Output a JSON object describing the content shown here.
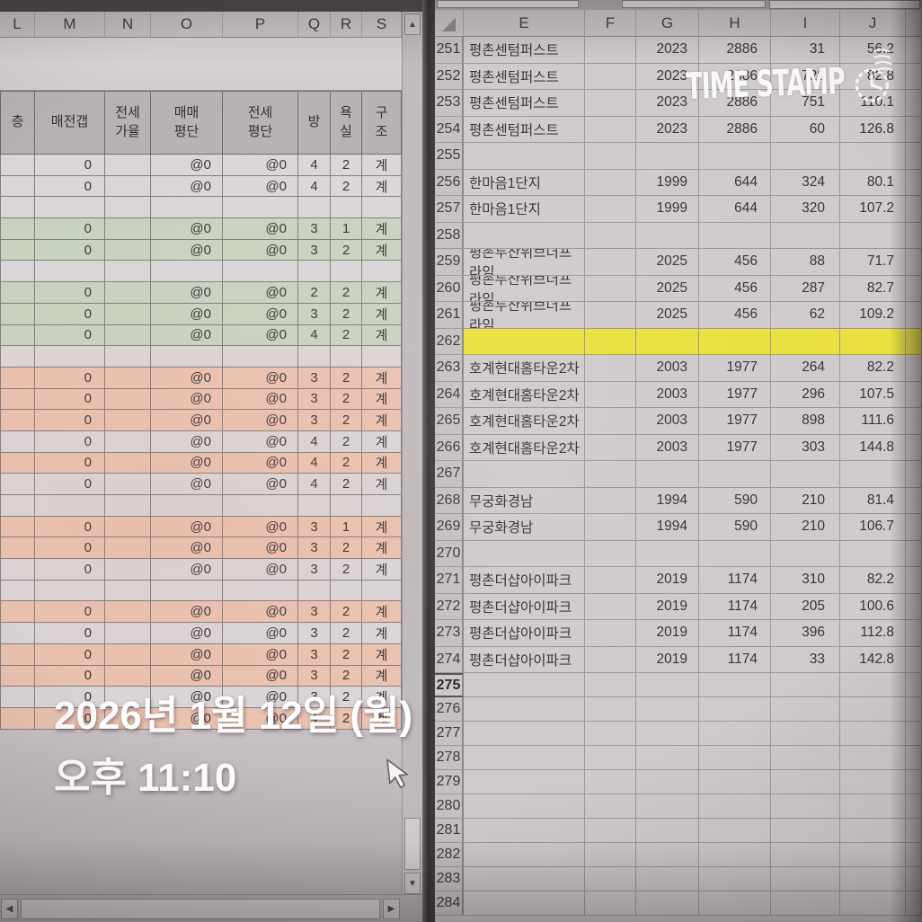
{
  "overlay": {
    "watermark_text": "TIME STAMP",
    "date_line1": "2026년 1월 12일 (월)",
    "time_line": "오후 11:10"
  },
  "icons": {
    "scroll_up": "▲",
    "scroll_down": "▼",
    "scroll_left": "◀",
    "scroll_right": "▶"
  },
  "colors": {
    "row_green": "#c8d2bf",
    "row_pink": "#eac2b0",
    "row_yellow": "#e8e13f"
  },
  "left_sheet": {
    "column_letters": [
      "L",
      "M",
      "N",
      "O",
      "P",
      "Q",
      "R",
      "S"
    ],
    "headers": [
      "층",
      "매전갭",
      "전세\n가율",
      "매매\n평단",
      "전세\n평단",
      "방",
      "욕\n실",
      "구\n조"
    ],
    "rows": [
      {
        "fill": "plain",
        "cells": [
          "",
          "0",
          "",
          "@0",
          "@0",
          "4",
          "2",
          "계"
        ]
      },
      {
        "fill": "plain",
        "cells": [
          "",
          "0",
          "",
          "@0",
          "@0",
          "4",
          "2",
          "계"
        ]
      },
      {
        "fill": "plain",
        "cells": [
          "",
          "",
          "",
          "",
          "",
          "",
          "",
          ""
        ]
      },
      {
        "fill": "green",
        "cells": [
          "",
          "0",
          "",
          "@0",
          "@0",
          "3",
          "1",
          "계"
        ]
      },
      {
        "fill": "green",
        "cells": [
          "",
          "0",
          "",
          "@0",
          "@0",
          "3",
          "2",
          "계"
        ]
      },
      {
        "fill": "plain",
        "cells": [
          "",
          "",
          "",
          "",
          "",
          "",
          "",
          ""
        ]
      },
      {
        "fill": "green",
        "cells": [
          "",
          "0",
          "",
          "@0",
          "@0",
          "2",
          "2",
          "계"
        ]
      },
      {
        "fill": "green",
        "cells": [
          "",
          "0",
          "",
          "@0",
          "@0",
          "3",
          "2",
          "계"
        ]
      },
      {
        "fill": "green",
        "cells": [
          "",
          "0",
          "",
          "@0",
          "@0",
          "4",
          "2",
          "계"
        ]
      },
      {
        "fill": "plain",
        "cells": [
          "",
          "",
          "",
          "",
          "",
          "",
          "",
          ""
        ]
      },
      {
        "fill": "pink",
        "cells": [
          "",
          "0",
          "",
          "@0",
          "@0",
          "3",
          "2",
          "계"
        ]
      },
      {
        "fill": "pink",
        "cells": [
          "",
          "0",
          "",
          "@0",
          "@0",
          "3",
          "2",
          "계"
        ]
      },
      {
        "fill": "pink",
        "cells": [
          "",
          "0",
          "",
          "@0",
          "@0",
          "3",
          "2",
          "계"
        ]
      },
      {
        "fill": "plain",
        "cells": [
          "",
          "0",
          "",
          "@0",
          "@0",
          "4",
          "2",
          "계"
        ]
      },
      {
        "fill": "pink",
        "cells": [
          "",
          "0",
          "",
          "@0",
          "@0",
          "4",
          "2",
          "계"
        ]
      },
      {
        "fill": "plain",
        "cells": [
          "",
          "0",
          "",
          "@0",
          "@0",
          "4",
          "2",
          "계"
        ]
      },
      {
        "fill": "plain",
        "cells": [
          "",
          "",
          "",
          "",
          "",
          "",
          "",
          ""
        ]
      },
      {
        "fill": "pink",
        "cells": [
          "",
          "0",
          "",
          "@0",
          "@0",
          "3",
          "1",
          "계"
        ]
      },
      {
        "fill": "pink",
        "cells": [
          "",
          "0",
          "",
          "@0",
          "@0",
          "3",
          "2",
          "계"
        ]
      },
      {
        "fill": "plain",
        "cells": [
          "",
          "0",
          "",
          "@0",
          "@0",
          "3",
          "2",
          "계"
        ]
      },
      {
        "fill": "plain",
        "cells": [
          "",
          "",
          "",
          "",
          "",
          "",
          "",
          ""
        ]
      },
      {
        "fill": "pink",
        "cells": [
          "",
          "0",
          "",
          "@0",
          "@0",
          "3",
          "2",
          "계"
        ]
      },
      {
        "fill": "plain",
        "cells": [
          "",
          "0",
          "",
          "@0",
          "@0",
          "3",
          "2",
          "계"
        ]
      },
      {
        "fill": "pink",
        "cells": [
          "",
          "0",
          "",
          "@0",
          "@0",
          "3",
          "2",
          "계"
        ]
      },
      {
        "fill": "pink",
        "cells": [
          "",
          "0",
          "",
          "@0",
          "@0",
          "3",
          "2",
          "계"
        ]
      },
      {
        "fill": "plain",
        "cells": [
          "",
          "0",
          "",
          "@0",
          "@0",
          "3",
          "2",
          "계"
        ]
      },
      {
        "fill": "pink",
        "cells": [
          "",
          "0",
          "",
          "@0",
          "@0",
          "4",
          "2",
          "계"
        ]
      }
    ]
  },
  "right_sheet": {
    "column_letters": [
      "E",
      "F",
      "G",
      "H",
      "I",
      "J"
    ],
    "rows": [
      {
        "num": "251",
        "fill": "plain",
        "cells": [
          "평촌센텀퍼스트",
          "",
          "2023",
          "2886",
          "31",
          "56.2"
        ]
      },
      {
        "num": "252",
        "fill": "plain",
        "cells": [
          "평촌센텀퍼스트",
          "",
          "2023",
          "2886",
          "728",
          "82.8"
        ]
      },
      {
        "num": "253",
        "fill": "plain",
        "cells": [
          "평촌센텀퍼스트",
          "",
          "2023",
          "2886",
          "751",
          "110.1"
        ]
      },
      {
        "num": "254",
        "fill": "plain",
        "cells": [
          "평촌센텀퍼스트",
          "",
          "2023",
          "2886",
          "60",
          "126.8"
        ]
      },
      {
        "num": "255",
        "fill": "plain",
        "cells": [
          "",
          "",
          "",
          "",
          "",
          ""
        ]
      },
      {
        "num": "256",
        "fill": "plain",
        "cells": [
          "한마음1단지",
          "",
          "1999",
          "644",
          "324",
          "80.1"
        ]
      },
      {
        "num": "257",
        "fill": "plain",
        "cells": [
          "한마음1단지",
          "",
          "1999",
          "644",
          "320",
          "107.2"
        ]
      },
      {
        "num": "258",
        "fill": "plain",
        "cells": [
          "",
          "",
          "",
          "",
          "",
          ""
        ]
      },
      {
        "num": "259",
        "fill": "plain",
        "cells": [
          "평촌두산위브더프라임",
          "",
          "2025",
          "456",
          "88",
          "71.7"
        ]
      },
      {
        "num": "260",
        "fill": "plain",
        "cells": [
          "평촌두산위브더프라임",
          "",
          "2025",
          "456",
          "287",
          "82.7"
        ]
      },
      {
        "num": "261",
        "fill": "plain",
        "cells": [
          "평촌두산위브더프라임",
          "",
          "2025",
          "456",
          "62",
          "109.2"
        ]
      },
      {
        "num": "262",
        "fill": "yellow",
        "cells": [
          "",
          "",
          "",
          "",
          "",
          ""
        ]
      },
      {
        "num": "263",
        "fill": "plain",
        "cells": [
          "호계현대홈타운2차",
          "",
          "2003",
          "1977",
          "264",
          "82.2"
        ]
      },
      {
        "num": "264",
        "fill": "plain",
        "cells": [
          "호계현대홈타운2차",
          "",
          "2003",
          "1977",
          "296",
          "107.5"
        ]
      },
      {
        "num": "265",
        "fill": "plain",
        "cells": [
          "호계현대홈타운2차",
          "",
          "2003",
          "1977",
          "898",
          "111.6"
        ]
      },
      {
        "num": "266",
        "fill": "plain",
        "cells": [
          "호계현대홈타운2차",
          "",
          "2003",
          "1977",
          "303",
          "144.8"
        ]
      },
      {
        "num": "267",
        "fill": "plain",
        "cells": [
          "",
          "",
          "",
          "",
          "",
          ""
        ]
      },
      {
        "num": "268",
        "fill": "plain",
        "cells": [
          "무궁화경남",
          "",
          "1994",
          "590",
          "210",
          "81.4"
        ]
      },
      {
        "num": "269",
        "fill": "plain",
        "cells": [
          "무궁화경남",
          "",
          "1994",
          "590",
          "210",
          "106.7"
        ]
      },
      {
        "num": "270",
        "fill": "plain",
        "cells": [
          "",
          "",
          "",
          "",
          "",
          ""
        ]
      },
      {
        "num": "271",
        "fill": "plain",
        "cells": [
          "평촌더샵아이파크",
          "",
          "2019",
          "1174",
          "310",
          "82.2"
        ]
      },
      {
        "num": "272",
        "fill": "plain",
        "cells": [
          "평촌더샵아이파크",
          "",
          "2019",
          "1174",
          "205",
          "100.6"
        ]
      },
      {
        "num": "273",
        "fill": "plain",
        "cells": [
          "평촌더샵아이파크",
          "",
          "2019",
          "1174",
          "396",
          "112.8"
        ]
      },
      {
        "num": "274",
        "fill": "plain",
        "cells": [
          "평촌더샵아이파크",
          "",
          "2019",
          "1174",
          "33",
          "142.8"
        ]
      },
      {
        "num": "275",
        "fill": "plain",
        "active": true,
        "cells": [
          "",
          "",
          "",
          "",
          "",
          ""
        ]
      },
      {
        "num": "276",
        "fill": "plain",
        "cells": [
          "",
          "",
          "",
          "",
          "",
          ""
        ]
      },
      {
        "num": "277",
        "fill": "plain",
        "cells": [
          "",
          "",
          "",
          "",
          "",
          ""
        ]
      },
      {
        "num": "278",
        "fill": "plain",
        "cells": [
          "",
          "",
          "",
          "",
          "",
          ""
        ]
      },
      {
        "num": "279",
        "fill": "plain",
        "cells": [
          "",
          "",
          "",
          "",
          "",
          ""
        ]
      },
      {
        "num": "280",
        "fill": "plain",
        "cells": [
          "",
          "",
          "",
          "",
          "",
          ""
        ]
      },
      {
        "num": "281",
        "fill": "plain",
        "cells": [
          "",
          "",
          "",
          "",
          "",
          ""
        ]
      },
      {
        "num": "282",
        "fill": "plain",
        "cells": [
          "",
          "",
          "",
          "",
          "",
          ""
        ]
      },
      {
        "num": "283",
        "fill": "plain",
        "cells": [
          "",
          "",
          "",
          "",
          "",
          ""
        ]
      },
      {
        "num": "284",
        "fill": "plain",
        "cells": [
          "",
          "",
          "",
          "",
          "",
          ""
        ]
      }
    ]
  }
}
